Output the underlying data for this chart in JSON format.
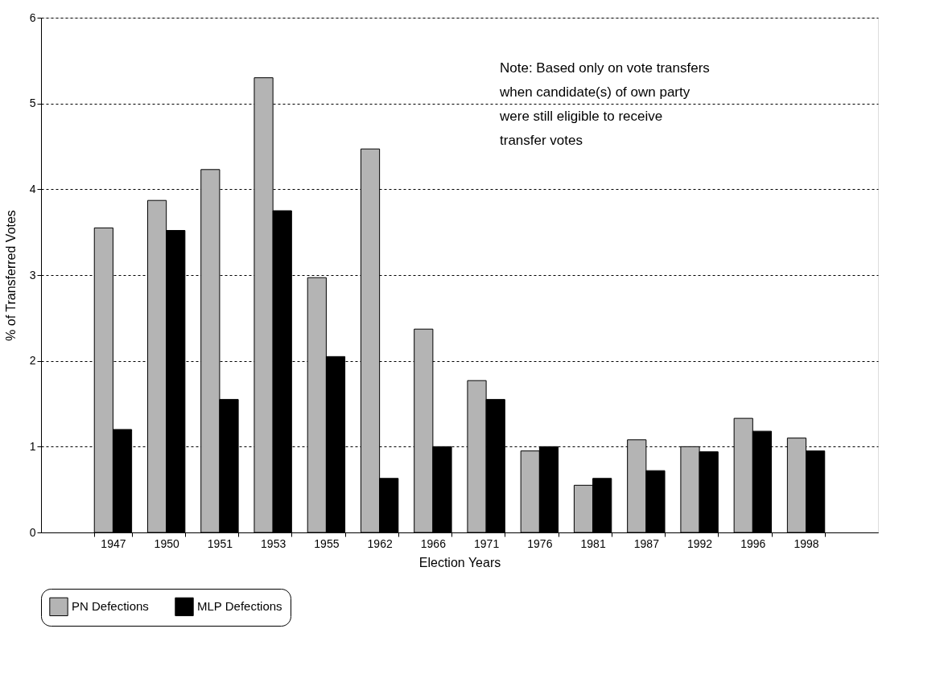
{
  "chart_data": {
    "type": "bar",
    "xlabel": "Election Years",
    "ylabel": "% of Transferred Votes",
    "categories": [
      "1947",
      "1950",
      "1951",
      "1953",
      "1955",
      "1962",
      "1966",
      "1971",
      "1976",
      "1981",
      "1987",
      "1992",
      "1996",
      "1998"
    ],
    "series": [
      {
        "name": "PN Defections",
        "color": "#b4b4b4",
        "values": [
          3.55,
          3.87,
          4.23,
          5.3,
          2.97,
          4.47,
          2.37,
          1.77,
          0.95,
          0.55,
          1.08,
          1.0,
          1.33,
          1.1
        ]
      },
      {
        "name": "MLP Defections",
        "color": "#000000",
        "values": [
          1.2,
          3.52,
          1.55,
          3.75,
          2.05,
          0.63,
          1.0,
          1.55,
          1.0,
          0.63,
          0.72,
          0.94,
          1.18,
          0.95
        ]
      }
    ],
    "ylim": [
      0,
      6
    ],
    "yticks": [
      0,
      1,
      2,
      3,
      4,
      5,
      6
    ],
    "grid": "y",
    "legend": "bottom",
    "annotations": [
      "Note: Based only on vote transfers when candidate(s) of own party were still eligible to receive transfer votes"
    ]
  }
}
